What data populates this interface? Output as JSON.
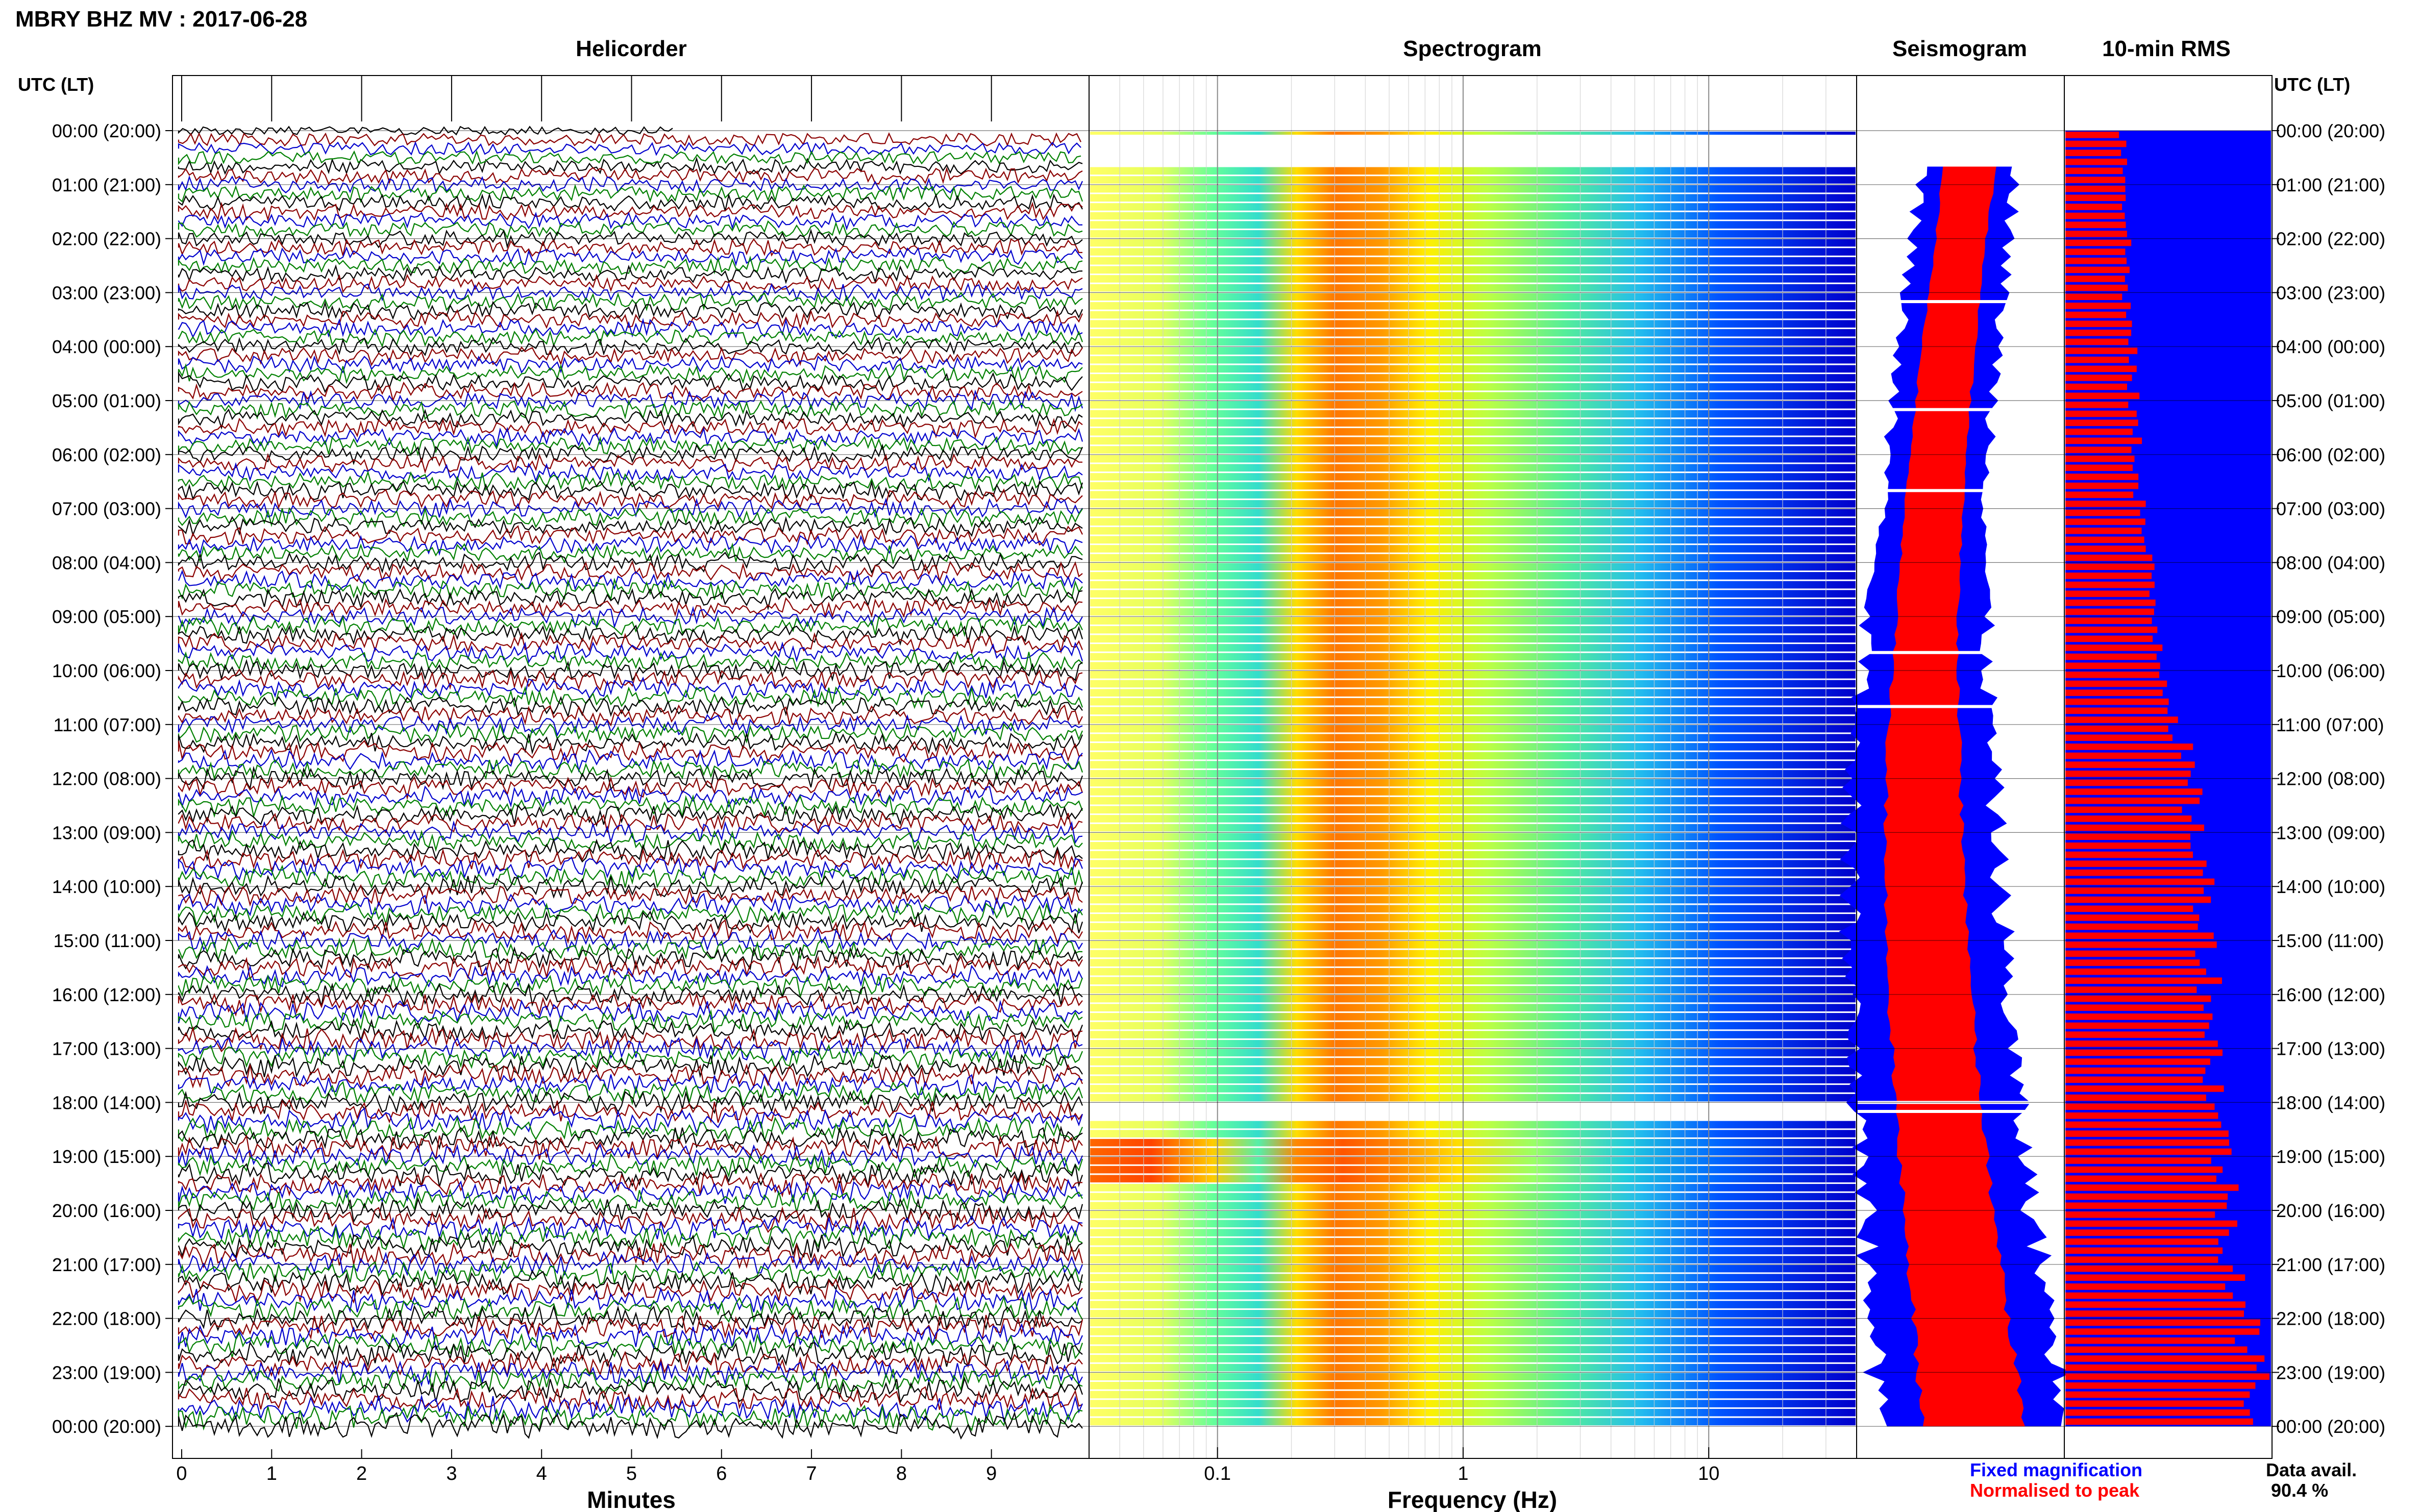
{
  "title": "MBRY BHZ MV : 2017-06-28",
  "panels": {
    "helicorder": {
      "title": "Helicorder",
      "xlabel": "Minutes"
    },
    "spectrogram": {
      "title": "Spectrogram",
      "xlabel": "Frequency (Hz)"
    },
    "seismogram": {
      "title": "Seismogram"
    },
    "rms": {
      "title": "10-min RMS"
    }
  },
  "axis_header_left": "UTC (LT)",
  "axis_header_right": "UTC (LT)",
  "time_labels": [
    "00:00 (20:00)",
    "01:00 (21:00)",
    "02:00 (22:00)",
    "03:00 (23:00)",
    "04:00 (00:00)",
    "05:00 (01:00)",
    "06:00 (02:00)",
    "07:00 (03:00)",
    "08:00 (04:00)",
    "09:00 (05:00)",
    "10:00 (06:00)",
    "11:00 (07:00)",
    "12:00 (08:00)",
    "13:00 (09:00)",
    "14:00 (10:00)",
    "15:00 (11:00)",
    "16:00 (12:00)",
    "17:00 (13:00)",
    "18:00 (14:00)",
    "19:00 (15:00)",
    "20:00 (16:00)",
    "21:00 (17:00)",
    "22:00 (18:00)",
    "23:00 (19:00)",
    "00:00 (20:00)"
  ],
  "minute_ticks": [
    "0",
    "1",
    "2",
    "3",
    "4",
    "5",
    "6",
    "7",
    "8",
    "9"
  ],
  "freq_ticks": [
    "0.1",
    "1",
    "10"
  ],
  "legend": {
    "fixed": "Fixed magnification",
    "normalised": "Normalised to peak",
    "fixed_color": "#0000ff",
    "normalised_color": "#ff0000"
  },
  "data_avail": {
    "label": "Data avail.",
    "value": "90.4 %"
  },
  "colors": {
    "trace_cycle": [
      "#000000",
      "#8b0000",
      "#0000cd",
      "#008000"
    ],
    "fixed": "#0000ff",
    "normalised": "#ff0000"
  },
  "chart_data": [
    {
      "type": "line",
      "name": "Helicorder",
      "xlabel": "Minutes",
      "xlim": [
        0,
        10
      ],
      "rows_per_hour": 6,
      "hours": 24,
      "trace_colors": [
        "black",
        "darkred",
        "blue",
        "green"
      ]
    },
    {
      "type": "heatmap",
      "name": "Spectrogram",
      "xlabel": "Frequency (Hz)",
      "xscale": "log",
      "xlim": [
        0.03,
        40
      ],
      "xticks": [
        0.1,
        1,
        10
      ],
      "colormap": "jet",
      "dominant_band_hz": [
        0.2,
        0.6
      ],
      "gaps_utc": [
        "00:00-00:40",
        "18:00-18:20"
      ]
    },
    {
      "type": "area",
      "name": "Seismogram",
      "series": [
        "Fixed magnification",
        "Normalised to peak"
      ],
      "note": "amplitude envelope per 10-min row, growing through the day"
    },
    {
      "type": "bar",
      "name": "10-min RMS",
      "orientation": "horizontal",
      "series": [
        {
          "name": "Fixed magnification",
          "color": "blue",
          "values_relative": 1.0
        },
        {
          "name": "Normalised to peak",
          "color": "red",
          "hourly_relative": [
            0.28,
            0.3,
            0.3,
            0.3,
            0.32,
            0.33,
            0.35,
            0.37,
            0.4,
            0.44,
            0.49,
            0.55,
            0.6,
            0.64,
            0.68,
            0.7,
            0.71,
            0.72,
            0.74,
            0.77,
            0.79,
            0.83,
            0.88,
            0.92,
            0.97
          ]
        }
      ],
      "data_avail_percent": 90.4
    }
  ]
}
